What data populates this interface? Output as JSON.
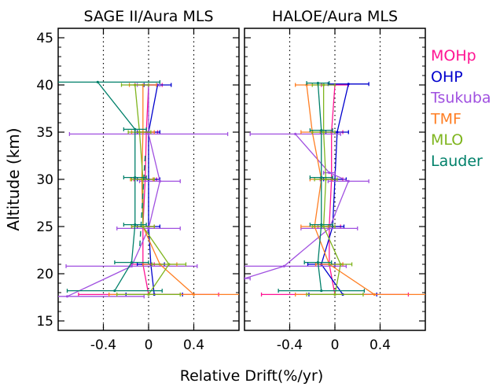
{
  "chart_data": [
    {
      "type": "line",
      "title": "SAGE II/Aura MLS",
      "xlim": [
        -0.8,
        0.8
      ],
      "ylim": [
        14,
        46
      ],
      "xticks": [
        -0.4,
        0,
        0.4
      ],
      "xtick_labels": [
        "-0.4",
        "0",
        "0.4"
      ],
      "yticks": [
        15,
        20,
        25,
        30,
        35,
        40,
        45
      ],
      "ytick_labels": [
        "15",
        "20",
        "25",
        "30",
        "35",
        "40",
        "45"
      ],
      "reference_lines_x": [
        -0.4,
        0.0,
        0.4
      ],
      "series": [
        {
          "name": "MOHp",
          "color": "#ff1493",
          "points": [
            {
              "x": 0.0,
              "y": 40.0,
              "err": 0.12
            },
            {
              "x": -0.02,
              "y": 35.0,
              "err": 0.1
            },
            {
              "x": -0.03,
              "y": 30.0,
              "err": 0.1
            },
            {
              "x": -0.05,
              "y": 25.0,
              "err": 0.1
            },
            {
              "x": -0.05,
              "y": 21.0,
              "err": 0.1
            },
            {
              "x": 0.0,
              "y": 17.8,
              "err": 0.62
            }
          ]
        },
        {
          "name": "OHP",
          "color": "#0000cd",
          "points": [
            {
              "x": 0.08,
              "y": 40.0,
              "err": 0.12
            },
            {
              "x": 0.0,
              "y": 35.0,
              "err": 0.1
            },
            {
              "x": 0.0,
              "y": 30.0,
              "err": 0.1
            },
            {
              "x": 0.0,
              "y": 25.0,
              "err": 0.1
            },
            {
              "x": 0.02,
              "y": 21.0,
              "err": 0.12
            },
            {
              "x": 0.05,
              "y": 17.8,
              "err": 0.25
            }
          ]
        },
        {
          "name": "Tsukuba",
          "color": "#a050e0",
          "points": [
            {
              "x": 0.0,
              "y": 40.0,
              "err": 0.1
            },
            {
              "x": 0.0,
              "y": 34.8,
              "err": 0.7
            },
            {
              "x": 0.1,
              "y": 29.8,
              "err": 0.18
            },
            {
              "x": 0.0,
              "y": 24.8,
              "err": 0.28
            },
            {
              "x": -0.15,
              "y": 20.8,
              "err": 0.58
            },
            {
              "x": -0.72,
              "y": 17.6,
              "err": 0.68
            }
          ]
        },
        {
          "name": "TMF",
          "color": "#ff7f24",
          "points": [
            {
              "x": -0.05,
              "y": 40.0,
              "err": 0.12
            },
            {
              "x": -0.05,
              "y": 35.0,
              "err": 0.1
            },
            {
              "x": -0.06,
              "y": 30.0,
              "err": 0.1
            },
            {
              "x": -0.05,
              "y": 25.0,
              "err": 0.1
            },
            {
              "x": 0.1,
              "y": 21.0,
              "err": 0.15
            },
            {
              "x": 0.4,
              "y": 17.8,
              "err": 0.75
            }
          ]
        },
        {
          "name": "MLO",
          "color": "#7fb51e",
          "points": [
            {
              "x": -0.12,
              "y": 40.0,
              "err": 0.12
            },
            {
              "x": -0.08,
              "y": 35.0,
              "err": 0.1
            },
            {
              "x": -0.05,
              "y": 30.0,
              "err": 0.1
            },
            {
              "x": -0.05,
              "y": 25.0,
              "err": 0.1
            },
            {
              "x": 0.18,
              "y": 21.0,
              "err": 0.15
            },
            {
              "x": 0.0,
              "y": 17.8,
              "err": 0.28
            }
          ]
        },
        {
          "name": "Lauder",
          "color": "#00806a",
          "points": [
            {
              "x": -0.45,
              "y": 40.3,
              "err": 0.55
            },
            {
              "x": -0.12,
              "y": 35.3,
              "err": 0.1
            },
            {
              "x": -0.12,
              "y": 30.2,
              "err": 0.1
            },
            {
              "x": -0.12,
              "y": 25.2,
              "err": 0.1
            },
            {
              "x": -0.15,
              "y": 21.2,
              "err": 0.15
            },
            {
              "x": -0.3,
              "y": 18.2,
              "err": 0.42
            }
          ]
        }
      ],
      "trend_lines": [
        {
          "name": "Lauder-dashed",
          "color": "#00806a",
          "dash": true,
          "points": [
            {
              "x": -0.03,
              "y": 32.5
            },
            {
              "x": -0.08,
              "y": 22.5
            }
          ]
        }
      ]
    },
    {
      "type": "line",
      "title": "HALOE/Aura MLS",
      "xlim": [
        -0.8,
        0.8
      ],
      "ylim": [
        14,
        46
      ],
      "xticks": [
        -0.4,
        0,
        0.4
      ],
      "xtick_labels": [
        "-0.4",
        "0",
        "0.4"
      ],
      "yticks": [
        15,
        20,
        25,
        30,
        35,
        40,
        45
      ],
      "reference_lines_x": [
        -0.4,
        0.0,
        0.4
      ],
      "series": [
        {
          "name": "MOHp",
          "color": "#ff1493",
          "points": [
            {
              "x": 0.0,
              "y": 40.0,
              "err": 0.12
            },
            {
              "x": -0.03,
              "y": 35.0,
              "err": 0.1
            },
            {
              "x": -0.03,
              "y": 30.0,
              "err": 0.1
            },
            {
              "x": -0.05,
              "y": 25.0,
              "err": 0.1
            },
            {
              "x": -0.05,
              "y": 21.0,
              "err": 0.12
            },
            {
              "x": 0.0,
              "y": 17.8,
              "err": 0.65
            }
          ]
        },
        {
          "name": "OHP",
          "color": "#0000cd",
          "points": [
            {
              "x": 0.12,
              "y": 40.1,
              "err": 0.18
            },
            {
              "x": 0.02,
              "y": 35.0,
              "err": 0.1
            },
            {
              "x": 0.0,
              "y": 30.0,
              "err": 0.1
            },
            {
              "x": -0.02,
              "y": 25.0,
              "err": 0.1
            },
            {
              "x": -0.12,
              "y": 21.0,
              "err": 0.12
            },
            {
              "x": 0.07,
              "y": 17.8,
              "err": 0.3
            }
          ]
        },
        {
          "name": "Tsukuba",
          "color": "#a050e0",
          "points": [
            {
              "x": -0.35,
              "y": 34.8,
              "err": 0.4
            },
            {
              "x": -0.05,
              "y": 30.7,
              "err": 0.05
            },
            {
              "x": 0.12,
              "y": 29.8,
              "err": 0.18
            },
            {
              "x": -0.05,
              "y": 24.8,
              "err": 0.25
            },
            {
              "x": -0.45,
              "y": 20.8,
              "err": 0.55
            },
            {
              "x": -0.8,
              "y": 19.5,
              "err": 0.05
            }
          ]
        },
        {
          "name": "TMF",
          "color": "#ff7f24",
          "points": [
            {
              "x": -0.25,
              "y": 40.0,
              "err": 0.1
            },
            {
              "x": -0.2,
              "y": 35.0,
              "err": 0.1
            },
            {
              "x": -0.12,
              "y": 30.0,
              "err": 0.1
            },
            {
              "x": -0.18,
              "y": 25.0,
              "err": 0.12
            },
            {
              "x": -0.05,
              "y": 21.0,
              "err": 0.12
            },
            {
              "x": 0.35,
              "y": 17.8,
              "err": 0.7
            }
          ]
        },
        {
          "name": "MLO",
          "color": "#7fb51e",
          "points": [
            {
              "x": -0.1,
              "y": 40.0,
              "err": 0.1
            },
            {
              "x": -0.1,
              "y": 35.0,
              "err": 0.1
            },
            {
              "x": -0.08,
              "y": 30.0,
              "err": 0.1
            },
            {
              "x": -0.1,
              "y": 25.0,
              "err": 0.1
            },
            {
              "x": 0.05,
              "y": 21.0,
              "err": 0.1
            },
            {
              "x": 0.0,
              "y": 17.8,
              "err": 0.25
            }
          ]
        },
        {
          "name": "Lauder",
          "color": "#00806a",
          "points": [
            {
              "x": -0.15,
              "y": 40.2,
              "err": 0.1
            },
            {
              "x": -0.12,
              "y": 35.2,
              "err": 0.1
            },
            {
              "x": -0.12,
              "y": 30.2,
              "err": 0.1
            },
            {
              "x": -0.12,
              "y": 25.2,
              "err": 0.1
            },
            {
              "x": -0.15,
              "y": 21.2,
              "err": 0.12
            },
            {
              "x": -0.12,
              "y": 18.2,
              "err": 0.38
            }
          ]
        }
      ],
      "trend_lines": []
    }
  ],
  "shared": {
    "xlabel": "Relative Drift(%/yr)",
    "ylabel": "Altitude (km)",
    "legend_placement": "right",
    "legend": [
      {
        "label": "MOHp",
        "color": "#ff1493"
      },
      {
        "label": "OHP",
        "color": "#0000cd"
      },
      {
        "label": "Tsukuba",
        "color": "#a050e0"
      },
      {
        "label": "TMF",
        "color": "#ff7f24"
      },
      {
        "label": "MLO",
        "color": "#7fb51e"
      },
      {
        "label": "Lauder",
        "color": "#00806a"
      }
    ]
  }
}
